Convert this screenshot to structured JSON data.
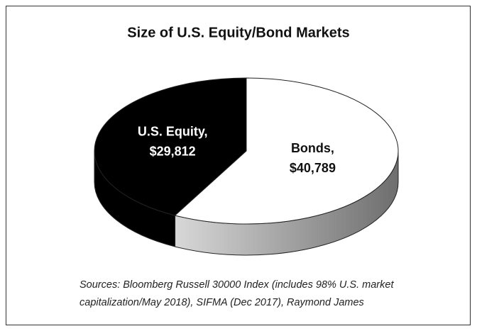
{
  "chart_data": {
    "type": "pie",
    "title": "Size of U.S. Equity/Bond Markets",
    "categories": [
      "U.S. Equity,",
      "Bonds,"
    ],
    "values": [
      29812,
      40789
    ],
    "value_labels": [
      "$29,812",
      "$40,789"
    ],
    "colors": [
      "#000000",
      "#ffffff"
    ],
    "source": "Sources: Bloomberg Russell 30000 Index (includes 98% U.S. market capitalization/May 2018), SIFMA (Dec 2017), Raymond James"
  }
}
